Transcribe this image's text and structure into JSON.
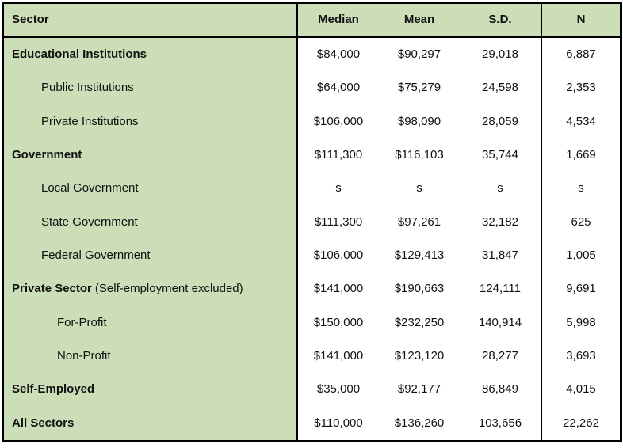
{
  "table": {
    "colors": {
      "header_bg": "#cbdeb7",
      "label_column_bg": "#cbdeb7",
      "data_bg": "#ffffff",
      "border": "#000000",
      "text": "#111111"
    },
    "columns": {
      "sector": "Sector",
      "median": "Median",
      "mean": "Mean",
      "sd": "S.D.",
      "n": "N"
    },
    "rows": [
      {
        "sector": "Educational Institutions",
        "suffix": "",
        "level": 0,
        "bold": true,
        "median": "$84,000",
        "mean": "$90,297",
        "sd": "29,018",
        "n": "6,887"
      },
      {
        "sector": "Public Institutions",
        "suffix": "",
        "level": 1,
        "bold": false,
        "median": "$64,000",
        "mean": "$75,279",
        "sd": "24,598",
        "n": "2,353"
      },
      {
        "sector": "Private Institutions",
        "suffix": "",
        "level": 1,
        "bold": false,
        "median": "$106,000",
        "mean": "$98,090",
        "sd": "28,059",
        "n": "4,534"
      },
      {
        "sector": "Government",
        "suffix": "",
        "level": 0,
        "bold": true,
        "median": "$111,300",
        "mean": "$116,103",
        "sd": "35,744",
        "n": "1,669"
      },
      {
        "sector": "Local Government",
        "suffix": "",
        "level": 1,
        "bold": false,
        "median": "s",
        "mean": "s",
        "sd": "s",
        "n": "s"
      },
      {
        "sector": "State Government",
        "suffix": "",
        "level": 1,
        "bold": false,
        "median": "$111,300",
        "mean": "$97,261",
        "sd": "32,182",
        "n": "625"
      },
      {
        "sector": "Federal Government",
        "suffix": "",
        "level": 1,
        "bold": false,
        "median": "$106,000",
        "mean": "$129,413",
        "sd": "31,847",
        "n": "1,005"
      },
      {
        "sector": "Private Sector",
        "suffix": "(Self-employment excluded)",
        "level": 0,
        "bold": true,
        "median": "$141,000",
        "mean": "$190,663",
        "sd": "124,111",
        "n": "9,691"
      },
      {
        "sector": "For-Profit",
        "suffix": "",
        "level": 2,
        "bold": false,
        "median": "$150,000",
        "mean": "$232,250",
        "sd": "140,914",
        "n": "5,998"
      },
      {
        "sector": "Non-Profit",
        "suffix": "",
        "level": 2,
        "bold": false,
        "median": "$141,000",
        "mean": "$123,120",
        "sd": "28,277",
        "n": "3,693"
      },
      {
        "sector": "Self-Employed",
        "suffix": "",
        "level": 0,
        "bold": true,
        "median": "$35,000",
        "mean": "$92,177",
        "sd": "86,849",
        "n": "4,015"
      },
      {
        "sector": "All Sectors",
        "suffix": "",
        "level": 0,
        "bold": true,
        "median": "$110,000",
        "mean": "$136,260",
        "sd": "103,656",
        "n": "22,262"
      }
    ]
  }
}
